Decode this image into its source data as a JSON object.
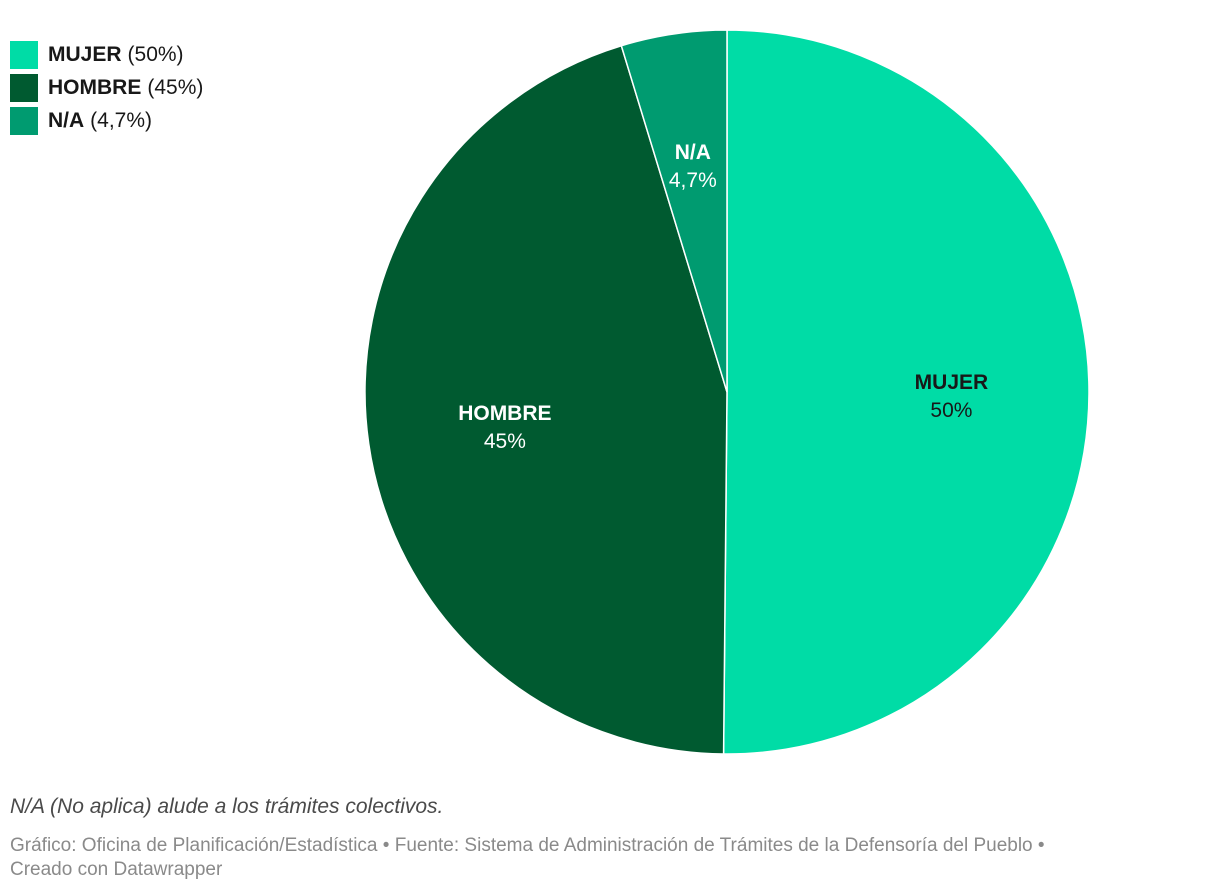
{
  "chart_data": {
    "type": "pie",
    "slices": [
      {
        "label": "MUJER",
        "value": 50,
        "display": "50%",
        "legend_value": "(50%)",
        "color": "#00dca6",
        "label_color": "#181818"
      },
      {
        "label": "HOMBRE",
        "value": 45,
        "display": "45%",
        "legend_value": "(45%)",
        "color": "#005a30",
        "label_color": "#ffffff"
      },
      {
        "label": "N/A",
        "value": 4.7,
        "display": "4,7%",
        "legend_value": "(4,7%)",
        "color": "#009b70",
        "label_color": "#ffffff"
      }
    ],
    "start_angle_deg": 0,
    "direction": "clockwise",
    "legend_position": "top-left"
  },
  "note": "N/A (No aplica) alude a los trámites colectivos.",
  "footer": {
    "line1": "Gráfico: Oficina de Planificación/Estadística • Fuente: Sistema de Administración de Trámites de la Defensoría del Pueblo •",
    "line2": "Creado con Datawrapper"
  }
}
